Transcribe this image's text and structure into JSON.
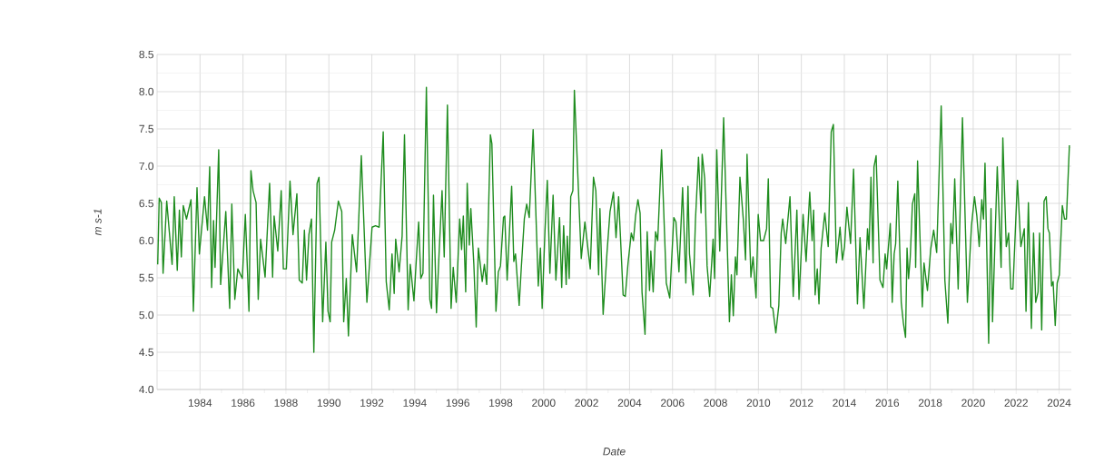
{
  "chart_data": {
    "type": "line",
    "xlabel": "Date",
    "ylabel": "m s-1",
    "color": "#1e8c1e",
    "grid": true,
    "marker": "none",
    "xlim": [
      1982.0,
      2024.57
    ],
    "ylim": [
      4.0,
      8.5
    ],
    "xticks": [
      1984,
      1986,
      1988,
      1990,
      1992,
      1994,
      1996,
      1998,
      2000,
      2002,
      2004,
      2006,
      2008,
      2010,
      2012,
      2014,
      2016,
      2018,
      2020,
      2022,
      2024
    ],
    "yticks": [
      {
        "value": 4.0,
        "label": "4.0"
      },
      {
        "value": 4.5,
        "label": "4.5"
      },
      {
        "value": 5.0,
        "label": "5.0"
      },
      {
        "value": 5.5,
        "label": "5.5"
      },
      {
        "value": 6.0,
        "label": "6.0"
      },
      {
        "value": 6.5,
        "label": "6.5"
      },
      {
        "value": 7.0,
        "label": "7.0"
      },
      {
        "value": 7.5,
        "label": "7.5"
      },
      {
        "value": 8.0,
        "label": "8.0"
      },
      {
        "value": 8.5,
        "label": "8.5"
      }
    ],
    "x": [
      1982.03,
      1982.1,
      1982.2,
      1982.28,
      1982.45,
      1982.7,
      1982.8,
      1982.94,
      1983.04,
      1983.13,
      1983.22,
      1983.37,
      1983.58,
      1983.69,
      1983.86,
      1983.97,
      1984.21,
      1984.35,
      1984.45,
      1984.54,
      1984.63,
      1984.7,
      1984.87,
      1984.96,
      1985.2,
      1985.38,
      1985.48,
      1985.62,
      1985.76,
      1985.97,
      1986.11,
      1986.28,
      1986.37,
      1986.47,
      1986.61,
      1986.71,
      1986.82,
      1987.03,
      1987.24,
      1987.38,
      1987.45,
      1987.62,
      1987.78,
      1987.88,
      1988.02,
      1988.19,
      1988.33,
      1988.51,
      1988.62,
      1988.76,
      1988.86,
      1988.96,
      1989.07,
      1989.19,
      1989.3,
      1989.45,
      1989.54,
      1989.71,
      1989.86,
      1989.96,
      1990.06,
      1990.13,
      1990.27,
      1990.44,
      1990.6,
      1990.69,
      1990.81,
      1990.91,
      1991.09,
      1991.29,
      1991.51,
      1991.77,
      1992.01,
      1992.17,
      1992.34,
      1992.53,
      1992.67,
      1992.81,
      1992.94,
      1993.04,
      1993.11,
      1993.27,
      1993.41,
      1993.52,
      1993.69,
      1993.79,
      1993.96,
      1994.07,
      1994.18,
      1994.28,
      1994.38,
      1994.54,
      1994.7,
      1994.78,
      1994.87,
      1995.01,
      1995.13,
      1995.27,
      1995.37,
      1995.52,
      1995.69,
      1995.79,
      1995.93,
      1996.09,
      1996.18,
      1996.26,
      1996.37,
      1996.44,
      1996.54,
      1996.61,
      1996.75,
      1996.86,
      1996.96,
      1997.14,
      1997.24,
      1997.35,
      1997.52,
      1997.59,
      1997.78,
      1997.89,
      1997.99,
      1998.13,
      1998.19,
      1998.3,
      1998.51,
      1998.61,
      1998.69,
      1998.86,
      1998.96,
      1999.1,
      1999.21,
      1999.33,
      1999.51,
      1999.75,
      1999.85,
      1999.93,
      2000.06,
      2000.17,
      2000.29,
      2000.44,
      2000.57,
      2000.74,
      2000.84,
      2000.93,
      2001.05,
      2001.1,
      2001.19,
      2001.26,
      2001.36,
      2001.43,
      2001.75,
      2001.92,
      2002.17,
      2002.32,
      2002.43,
      2002.56,
      2002.62,
      2002.77,
      2002.95,
      2003.09,
      2003.25,
      2003.37,
      2003.49,
      2003.7,
      2003.8,
      2003.93,
      2004.08,
      2004.18,
      2004.28,
      2004.39,
      2004.49,
      2004.58,
      2004.72,
      2004.82,
      2004.93,
      2004.99,
      2005.1,
      2005.21,
      2005.31,
      2005.49,
      2005.71,
      2005.87,
      2006.06,
      2006.16,
      2006.3,
      2006.47,
      2006.62,
      2006.72,
      2006.79,
      2006.96,
      2007.07,
      2007.21,
      2007.33,
      2007.38,
      2007.5,
      2007.61,
      2007.73,
      2007.89,
      2007.96,
      2008.06,
      2008.2,
      2008.38,
      2008.65,
      2008.74,
      2008.83,
      2008.93,
      2009.0,
      2009.14,
      2009.3,
      2009.4,
      2009.47,
      2009.65,
      2009.75,
      2009.89,
      2009.99,
      2010.1,
      2010.24,
      2010.38,
      2010.46,
      2010.57,
      2010.67,
      2010.81,
      2010.95,
      2011.06,
      2011.13,
      2011.27,
      2011.47,
      2011.62,
      2011.79,
      2011.89,
      2012.08,
      2012.22,
      2012.39,
      2012.5,
      2012.57,
      2012.64,
      2012.74,
      2012.82,
      2012.92,
      2013.09,
      2013.25,
      2013.39,
      2013.49,
      2013.63,
      2013.8,
      2013.91,
      2014.01,
      2014.12,
      2014.29,
      2014.43,
      2014.61,
      2014.73,
      2014.91,
      2015.08,
      2015.15,
      2015.24,
      2015.34,
      2015.38,
      2015.48,
      2015.66,
      2015.8,
      2015.9,
      2015.97,
      2016.14,
      2016.23,
      2016.32,
      2016.39,
      2016.49,
      2016.65,
      2016.75,
      2016.85,
      2016.92,
      2016.99,
      2017.07,
      2017.17,
      2017.28,
      2017.32,
      2017.41,
      2017.52,
      2017.63,
      2017.71,
      2017.87,
      2018.02,
      2018.16,
      2018.3,
      2018.51,
      2018.68,
      2018.82,
      2018.96,
      2019.04,
      2019.14,
      2019.3,
      2019.5,
      2019.73,
      2019.92,
      2020.06,
      2020.17,
      2020.28,
      2020.4,
      2020.48,
      2020.55,
      2020.72,
      2020.83,
      2020.9,
      2021.12,
      2021.3,
      2021.38,
      2021.54,
      2021.65,
      2021.75,
      2021.85,
      2022.06,
      2022.22,
      2022.38,
      2022.46,
      2022.57,
      2022.71,
      2022.81,
      2022.91,
      2023.02,
      2023.09,
      2023.19,
      2023.3,
      2023.4,
      2023.48,
      2023.55,
      2023.65,
      2023.72,
      2023.82,
      2023.91,
      2024.01,
      2024.15,
      2024.25,
      2024.34,
      2024.48
    ],
    "values": [
      5.68,
      6.57,
      6.51,
      5.56,
      6.53,
      5.68,
      6.59,
      5.6,
      6.41,
      5.78,
      6.47,
      6.29,
      6.55,
      5.05,
      6.71,
      5.82,
      6.59,
      6.14,
      6.99,
      5.37,
      6.27,
      5.64,
      7.22,
      5.41,
      6.39,
      5.09,
      6.49,
      5.21,
      5.62,
      5.49,
      6.35,
      5.05,
      6.94,
      6.67,
      6.51,
      5.21,
      6.02,
      5.51,
      6.77,
      5.51,
      6.33,
      5.86,
      6.67,
      5.62,
      5.62,
      6.8,
      6.08,
      6.63,
      5.47,
      5.43,
      6.14,
      5.47,
      6.08,
      6.29,
      4.5,
      6.77,
      6.85,
      4.91,
      5.98,
      5.05,
      4.91,
      5.98,
      6.14,
      6.53,
      6.39,
      4.91,
      5.49,
      4.72,
      6.08,
      5.58,
      7.14,
      5.17,
      6.18,
      6.2,
      6.18,
      7.46,
      5.45,
      5.07,
      5.82,
      5.29,
      6.02,
      5.58,
      6.06,
      7.42,
      5.07,
      5.68,
      5.19,
      5.74,
      6.25,
      5.49,
      5.56,
      8.06,
      5.21,
      5.09,
      6.61,
      5.03,
      5.82,
      6.67,
      5.78,
      7.82,
      5.09,
      5.64,
      5.17,
      6.29,
      5.88,
      6.33,
      5.31,
      6.77,
      5.94,
      6.43,
      5.68,
      4.84,
      5.9,
      5.45,
      5.68,
      5.41,
      7.42,
      7.3,
      5.05,
      5.58,
      5.66,
      6.31,
      6.33,
      5.47,
      6.73,
      5.72,
      5.82,
      5.13,
      5.64,
      6.29,
      6.49,
      6.31,
      7.49,
      5.39,
      5.9,
      5.09,
      6.12,
      6.81,
      5.56,
      6.61,
      5.47,
      6.31,
      5.37,
      6.2,
      5.41,
      6.06,
      5.49,
      6.59,
      6.67,
      8.02,
      5.76,
      6.25,
      5.62,
      6.85,
      6.67,
      5.54,
      6.43,
      5.01,
      5.84,
      6.39,
      6.65,
      6.04,
      6.59,
      5.27,
      5.25,
      5.7,
      6.1,
      6.0,
      6.33,
      6.55,
      6.37,
      5.31,
      4.74,
      6.12,
      5.33,
      5.86,
      5.31,
      6.12,
      6.0,
      7.22,
      5.43,
      5.23,
      6.31,
      6.25,
      5.58,
      6.71,
      5.43,
      6.73,
      5.82,
      5.27,
      6.29,
      7.12,
      6.37,
      7.16,
      6.83,
      5.66,
      5.25,
      6.02,
      5.49,
      7.22,
      5.86,
      7.65,
      4.91,
      5.54,
      4.99,
      5.78,
      5.54,
      6.85,
      6.27,
      5.74,
      7.16,
      5.51,
      5.78,
      5.23,
      6.35,
      6.0,
      6.0,
      6.16,
      6.83,
      5.11,
      5.09,
      4.76,
      5.13,
      6.1,
      6.29,
      5.96,
      6.59,
      5.25,
      6.41,
      5.21,
      6.35,
      5.72,
      6.65,
      6.0,
      6.41,
      5.27,
      5.62,
      5.15,
      5.9,
      6.37,
      5.92,
      7.46,
      7.56,
      5.7,
      6.18,
      5.74,
      5.92,
      6.45,
      5.96,
      6.96,
      5.15,
      6.04,
      5.09,
      6.16,
      5.88,
      6.85,
      5.7,
      6.99,
      7.14,
      5.47,
      5.37,
      5.82,
      5.62,
      6.23,
      5.17,
      5.82,
      5.96,
      6.8,
      5.17,
      4.89,
      4.7,
      5.9,
      5.49,
      5.78,
      6.49,
      6.63,
      5.64,
      7.07,
      6.06,
      5.11,
      5.7,
      5.33,
      5.88,
      6.14,
      5.84,
      7.81,
      5.47,
      4.89,
      6.23,
      5.96,
      6.83,
      5.35,
      7.65,
      5.17,
      6.2,
      6.59,
      6.33,
      5.92,
      6.55,
      6.29,
      7.04,
      4.62,
      6.43,
      4.91,
      6.99,
      5.64,
      7.38,
      5.92,
      6.1,
      5.35,
      5.35,
      6.81,
      5.92,
      6.16,
      5.05,
      6.51,
      4.82,
      6.1,
      5.17,
      5.31,
      6.1,
      4.8,
      6.53,
      6.59,
      6.16,
      6.1,
      5.39,
      5.45,
      4.86,
      5.43,
      5.54,
      6.47,
      6.29,
      6.29,
      7.28
    ]
  }
}
